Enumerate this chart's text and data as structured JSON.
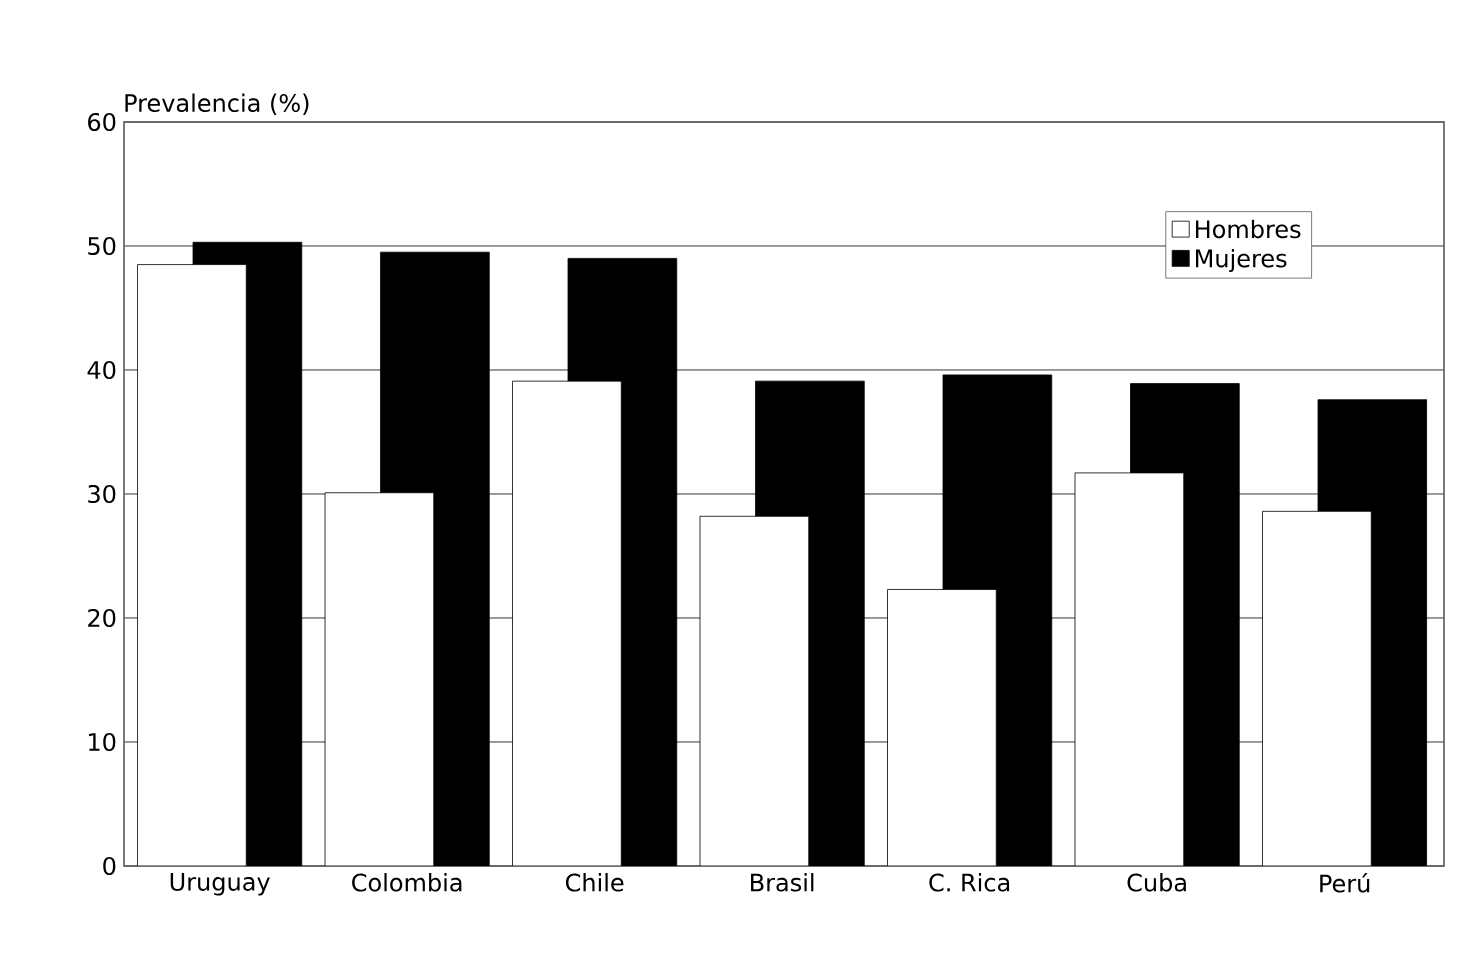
{
  "chart_data": {
    "type": "bar",
    "ylabel": "Prevalencia (%)",
    "categories": [
      "Uruguay",
      "Colombia",
      "Chile",
      "Brasil",
      "C. Rica",
      "Cuba",
      "Perú"
    ],
    "series": [
      {
        "name": "Hombres",
        "color": "#ffffff",
        "values": [
          48.5,
          30.1,
          39.1,
          28.2,
          22.3,
          31.7,
          28.6
        ]
      },
      {
        "name": "Mujeres",
        "color": "#000000",
        "values": [
          50.3,
          49.5,
          49.0,
          39.1,
          39.6,
          38.9,
          37.6
        ]
      }
    ],
    "ylim": [
      0,
      60
    ],
    "yticks": [
      0,
      10,
      20,
      30,
      40,
      50,
      60
    ],
    "grid": "y",
    "legend": "top right"
  }
}
